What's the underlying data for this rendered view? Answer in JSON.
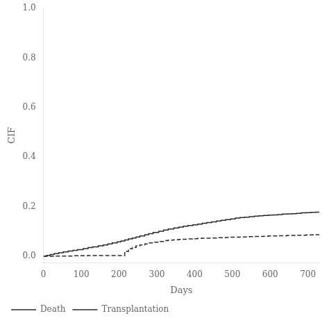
{
  "chart_data": {
    "type": "step",
    "xlabel": "Days",
    "ylabel": "CIF",
    "xlim": [
      0,
      730
    ],
    "ylim": [
      -0.025,
      1.0
    ],
    "xticks": [
      0,
      100,
      200,
      300,
      400,
      500,
      600,
      700
    ],
    "yticks": [
      {
        "value": 0.0,
        "label": "0.0"
      },
      0.2,
      0.4,
      0.6,
      0.8,
      {
        "value": 1.0,
        "label": "1.0"
      }
    ],
    "grid": false,
    "legend": "bottom",
    "x": [
      0,
      8,
      18,
      28,
      40,
      52,
      65,
      78,
      90,
      105,
      118,
      130,
      145,
      158,
      170,
      182,
      195,
      205,
      215,
      225,
      235,
      245,
      255,
      268,
      278,
      290,
      305,
      318,
      330,
      345,
      358,
      370,
      382,
      395,
      408,
      420,
      432,
      445,
      458,
      470,
      482,
      495,
      508,
      520,
      532,
      545,
      558,
      570,
      582,
      595,
      608,
      620,
      632,
      645,
      658,
      670,
      682,
      695,
      708,
      720,
      730
    ],
    "series": [
      {
        "name": "Death",
        "color": "#2a2a2a",
        "line_style": "solid",
        "values": [
          0.0,
          0.004,
          0.007,
          0.011,
          0.014,
          0.018,
          0.021,
          0.024,
          0.027,
          0.031,
          0.035,
          0.038,
          0.042,
          0.046,
          0.05,
          0.054,
          0.058,
          0.062,
          0.066,
          0.07,
          0.074,
          0.078,
          0.082,
          0.087,
          0.091,
          0.096,
          0.101,
          0.106,
          0.11,
          0.114,
          0.118,
          0.121,
          0.124,
          0.127,
          0.13,
          0.133,
          0.136,
          0.139,
          0.142,
          0.145,
          0.148,
          0.151,
          0.154,
          0.156,
          0.158,
          0.16,
          0.162,
          0.163,
          0.165,
          0.166,
          0.167,
          0.168,
          0.17,
          0.171,
          0.172,
          0.173,
          0.175,
          0.176,
          0.177,
          0.178,
          0.178
        ]
      },
      {
        "name": "Transplantation",
        "color": "#2a2a2a",
        "line_style": "dashed",
        "values": [
          0.0,
          0.0,
          0.0,
          0.001,
          0.001,
          0.001,
          0.001,
          0.002,
          0.002,
          0.002,
          0.003,
          0.003,
          0.003,
          0.003,
          0.003,
          0.003,
          0.003,
          0.003,
          0.02,
          0.03,
          0.036,
          0.042,
          0.046,
          0.05,
          0.054,
          0.057,
          0.06,
          0.063,
          0.065,
          0.067,
          0.068,
          0.069,
          0.07,
          0.071,
          0.072,
          0.073,
          0.073,
          0.074,
          0.075,
          0.075,
          0.076,
          0.077,
          0.077,
          0.078,
          0.078,
          0.079,
          0.08,
          0.08,
          0.081,
          0.082,
          0.082,
          0.083,
          0.083,
          0.084,
          0.084,
          0.085,
          0.085,
          0.086,
          0.086,
          0.087,
          0.087
        ]
      }
    ]
  }
}
